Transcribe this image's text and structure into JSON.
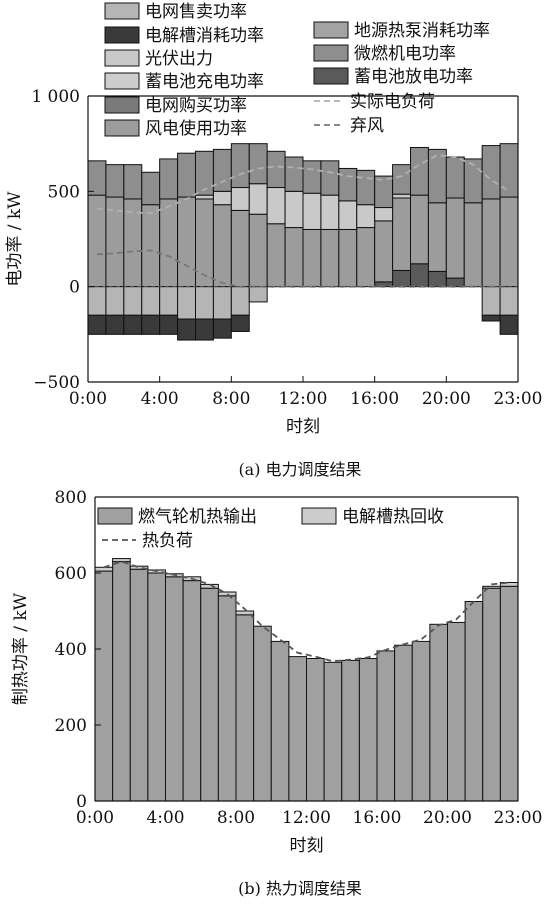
{
  "caption_a": "(a)  电力调度结果",
  "caption_b": "(b)  热力调度结果",
  "colors": {
    "grid_sell": "#b5b5b5",
    "electrolyzer": "#3a3a3a",
    "pv": "#c9c9c9",
    "battery_charge": "#cdcdcd",
    "grid_buy": "#7a7a7a",
    "wind": "#9c9c9c",
    "heat_pump": "#a3a3a3",
    "microturbine": "#8e8e8e",
    "battery_discharge": "#5a5a5a",
    "load_line": "#b0b0b0",
    "curtail_line": "#777777",
    "gt_heat": "#a0a0a0",
    "electro_heat": "#cccccc",
    "heat_load_line": "#555555",
    "axis": "#111111"
  },
  "chart_data": [
    {
      "id": "power",
      "type": "bar",
      "stacked": true,
      "xlabel": "时刻",
      "ylabel": "电功率 / kW",
      "ylim": [
        -500,
        1000
      ],
      "yticks": [
        -500,
        0,
        500,
        1000
      ],
      "ytick_labels": [
        "−500",
        "0",
        "500",
        "1 000"
      ],
      "xticks": [
        0,
        4,
        8,
        12,
        16,
        20,
        23
      ],
      "xtick_labels": [
        "0:00",
        "4:00",
        "8:00",
        "12:00",
        "16:00",
        "20:00",
        "23:00"
      ],
      "categories": [
        0,
        1,
        2,
        3,
        4,
        5,
        6,
        7,
        8,
        9,
        10,
        11,
        12,
        13,
        14,
        15,
        16,
        17,
        18,
        19,
        20,
        21,
        22,
        23
      ],
      "legend_left": [
        {
          "key": "grid_sell",
          "label": "电网售卖功率"
        },
        {
          "key": "electrolyzer",
          "label": "电解槽消耗功率"
        },
        {
          "key": "pv",
          "label": "光伏出力"
        },
        {
          "key": "battery_charge",
          "label": "蓄电池充电功率"
        },
        {
          "key": "grid_buy",
          "label": "电网购买功率"
        },
        {
          "key": "wind",
          "label": "风电使用功率"
        }
      ],
      "legend_right": [
        {
          "key": "heat_pump",
          "label": "地源热泵消耗功率"
        },
        {
          "key": "microturbine",
          "label": "微燃机电功率"
        },
        {
          "key": "battery_discharge",
          "label": "蓄电池放电功率"
        },
        {
          "key": "load_line",
          "label": "实际电负荷",
          "line": true
        },
        {
          "key": "curtail_line",
          "label": "弃风",
          "line": true
        }
      ],
      "series": [
        {
          "key": "grid_buy",
          "values": [
            0,
            0,
            0,
            0,
            0,
            0,
            0,
            0,
            0,
            0,
            0,
            0,
            0,
            0,
            0,
            0,
            0,
            0,
            0,
            0,
            0,
            0,
            0,
            0
          ]
        },
        {
          "key": "battery_discharge",
          "values": [
            0,
            0,
            0,
            0,
            0,
            0,
            0,
            0,
            0,
            0,
            0,
            0,
            0,
            0,
            0,
            0,
            25,
            85,
            120,
            80,
            45,
            0,
            0,
            0
          ]
        },
        {
          "key": "wind",
          "values": [
            480,
            470,
            460,
            430,
            460,
            470,
            460,
            430,
            400,
            380,
            330,
            310,
            300,
            300,
            300,
            310,
            320,
            380,
            360,
            360,
            420,
            440,
            460,
            470
          ]
        },
        {
          "key": "pv",
          "values": [
            0,
            0,
            0,
            0,
            0,
            0,
            20,
            70,
            120,
            160,
            190,
            190,
            190,
            180,
            150,
            120,
            70,
            20,
            0,
            0,
            0,
            0,
            0,
            0
          ]
        },
        {
          "key": "microturbine",
          "values": [
            180,
            170,
            180,
            170,
            210,
            230,
            230,
            220,
            230,
            210,
            190,
            180,
            170,
            180,
            170,
            180,
            165,
            155,
            250,
            280,
            215,
            230,
            280,
            280
          ]
        },
        {
          "key": "heat_pump",
          "values": [
            0,
            0,
            0,
            0,
            0,
            0,
            0,
            0,
            0,
            0,
            0,
            0,
            0,
            0,
            0,
            0,
            0,
            0,
            0,
            0,
            0,
            0,
            0,
            0
          ]
        },
        {
          "key": "grid_sell",
          "values": [
            -150,
            -150,
            -150,
            -150,
            -150,
            -170,
            -170,
            -170,
            -150,
            -80,
            0,
            0,
            0,
            0,
            0,
            0,
            0,
            0,
            0,
            0,
            0,
            0,
            -150,
            -150
          ]
        },
        {
          "key": "battery_charge",
          "values": [
            0,
            0,
            0,
            0,
            0,
            0,
            0,
            0,
            0,
            0,
            0,
            0,
            0,
            0,
            0,
            0,
            0,
            0,
            0,
            0,
            0,
            0,
            0,
            0
          ]
        },
        {
          "key": "electrolyzer",
          "values": [
            -100,
            -100,
            -100,
            -100,
            -100,
            -110,
            -110,
            -100,
            -85,
            0,
            0,
            0,
            0,
            0,
            0,
            0,
            0,
            0,
            0,
            0,
            0,
            0,
            -30,
            -100
          ]
        }
      ],
      "load_line": [
        410,
        400,
        390,
        385,
        420,
        460,
        510,
        550,
        590,
        620,
        630,
        625,
        615,
        600,
        580,
        570,
        560,
        580,
        640,
        690,
        680,
        640,
        560,
        500
      ],
      "curtail_line": [
        170,
        175,
        185,
        190,
        160,
        110,
        60,
        20,
        0,
        0,
        0,
        0,
        0,
        0,
        0,
        0,
        0,
        0,
        0,
        0,
        0,
        0,
        0,
        0
      ]
    },
    {
      "id": "heat",
      "type": "bar",
      "stacked": true,
      "xlabel": "时刻",
      "ylabel": "制热功率 / kW",
      "ylim": [
        0,
        800
      ],
      "yticks": [
        0,
        200,
        400,
        600,
        800
      ],
      "ytick_labels": [
        "0",
        "200",
        "400",
        "600",
        "800"
      ],
      "xticks": [
        0,
        4,
        8,
        12,
        16,
        20,
        23
      ],
      "xtick_labels": [
        "0:00",
        "4:00",
        "8:00",
        "12:00",
        "16:00",
        "20:00",
        "23:00"
      ],
      "categories": [
        0,
        1,
        2,
        3,
        4,
        5,
        6,
        7,
        8,
        9,
        10,
        11,
        12,
        13,
        14,
        15,
        16,
        17,
        18,
        19,
        20,
        21,
        22,
        23
      ],
      "legend": [
        {
          "key": "gt_heat",
          "label": "燃气轮机热输出"
        },
        {
          "key": "electro_heat",
          "label": "电解槽热回收"
        },
        {
          "key": "heat_load_line",
          "label": "热负荷",
          "line": true
        }
      ],
      "series": [
        {
          "key": "gt_heat",
          "values": [
            605,
            630,
            610,
            600,
            590,
            580,
            560,
            540,
            490,
            460,
            420,
            380,
            375,
            365,
            370,
            375,
            395,
            410,
            420,
            465,
            470,
            525,
            560,
            565
          ]
        },
        {
          "key": "electro_heat",
          "values": [
            10,
            8,
            8,
            8,
            8,
            10,
            10,
            10,
            10,
            0,
            0,
            0,
            0,
            0,
            0,
            0,
            0,
            0,
            0,
            0,
            0,
            0,
            5,
            10
          ]
        }
      ],
      "load_line": [
        615,
        630,
        615,
        605,
        595,
        585,
        570,
        545,
        505,
        460,
        425,
        390,
        380,
        368,
        372,
        378,
        398,
        412,
        425,
        462,
        478,
        525,
        570,
        575
      ]
    }
  ]
}
